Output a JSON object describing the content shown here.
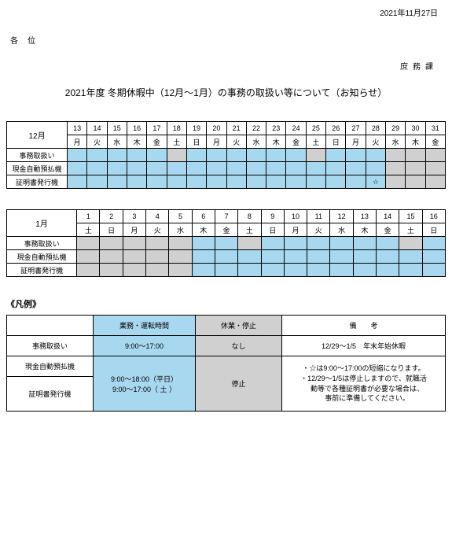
{
  "header": {
    "date": "2021年11月27日",
    "addressee": "各位",
    "department": "庶務課",
    "title": "2021年度 冬期休暇中（12月～1月）の事務の取扱い等について（お知らせ）"
  },
  "colors": {
    "open": "#a8d8f0",
    "closed": "#d0d0d0"
  },
  "december": {
    "month": "12月",
    "days": [
      "13",
      "14",
      "15",
      "16",
      "17",
      "18",
      "19",
      "20",
      "21",
      "22",
      "23",
      "24",
      "25",
      "26",
      "27",
      "28",
      "29",
      "30",
      "31"
    ],
    "weekdays": [
      "月",
      "火",
      "水",
      "木",
      "金",
      "土",
      "日",
      "月",
      "火",
      "水",
      "木",
      "金",
      "土",
      "日",
      "月",
      "火",
      "水",
      "木",
      "金"
    ],
    "rows": [
      {
        "label": "事務取扱い",
        "cells": [
          "b",
          "b",
          "b",
          "b",
          "b",
          "g",
          "b",
          "b",
          "b",
          "b",
          "b",
          "b",
          "g",
          "b",
          "b",
          "b",
          "g",
          "g",
          "g"
        ]
      },
      {
        "label": "現金自動預払機",
        "cells": [
          "b",
          "b",
          "b",
          "b",
          "b",
          "b",
          "b",
          "b",
          "b",
          "b",
          "b",
          "b",
          "b",
          "b",
          "b",
          "b",
          "g",
          "g",
          "g"
        ]
      },
      {
        "label": "証明書発行機",
        "cells": [
          "b",
          "b",
          "b",
          "b",
          "b",
          "b",
          "b",
          "b",
          "b",
          "b",
          "b",
          "b",
          "b",
          "b",
          "b",
          "s",
          "g",
          "g",
          "g"
        ]
      }
    ],
    "star": "☆"
  },
  "january": {
    "month": "1月",
    "days": [
      "1",
      "2",
      "3",
      "4",
      "5",
      "6",
      "7",
      "8",
      "9",
      "10",
      "11",
      "12",
      "13",
      "14",
      "15",
      "16"
    ],
    "weekdays": [
      "土",
      "日",
      "月",
      "火",
      "水",
      "木",
      "金",
      "土",
      "日",
      "月",
      "火",
      "水",
      "木",
      "金",
      "土",
      "日"
    ],
    "rows": [
      {
        "label": "事務取扱い",
        "cells": [
          "g",
          "g",
          "g",
          "g",
          "g",
          "b",
          "b",
          "g",
          "b",
          "b",
          "b",
          "b",
          "b",
          "b",
          "g",
          "b"
        ]
      },
      {
        "label": "現金自動預払機",
        "cells": [
          "g",
          "g",
          "g",
          "g",
          "g",
          "b",
          "b",
          "b",
          "b",
          "b",
          "b",
          "b",
          "b",
          "b",
          "b",
          "b"
        ]
      },
      {
        "label": "証明書発行機",
        "cells": [
          "g",
          "g",
          "g",
          "g",
          "g",
          "b",
          "b",
          "b",
          "b",
          "b",
          "b",
          "b",
          "b",
          "b",
          "b",
          "b"
        ]
      }
    ]
  },
  "legend": {
    "title": "《凡例》",
    "headers": [
      "",
      "業務・運転時間",
      "休業・停止",
      "備　　考"
    ],
    "rows": [
      {
        "label": "事務取扱い",
        "hours": "9:00～17:00",
        "closed": "なし",
        "note": "12/29～1/5　年末年始休暇",
        "hoursClass": "blue",
        "closedClass": "grey"
      },
      {
        "label": "現金自動預払機",
        "hours": "",
        "closed": "",
        "note": ""
      },
      {
        "label": "証明書発行機",
        "hours": "",
        "closed": "",
        "note": ""
      }
    ],
    "merged": {
      "hours_line1": "9:00～18:00（平日）",
      "hours_line2": "9:00～17:00（ 土 ）",
      "closed": "停止",
      "note_line1": "・☆は9:00～17:00の短縮になります。",
      "note_line2": "・12/29～1/5は停止しますので、就職活",
      "note_line3": "　動等で各種証明書が必要な場合は、",
      "note_line4": "　事前に準備してください。"
    }
  }
}
